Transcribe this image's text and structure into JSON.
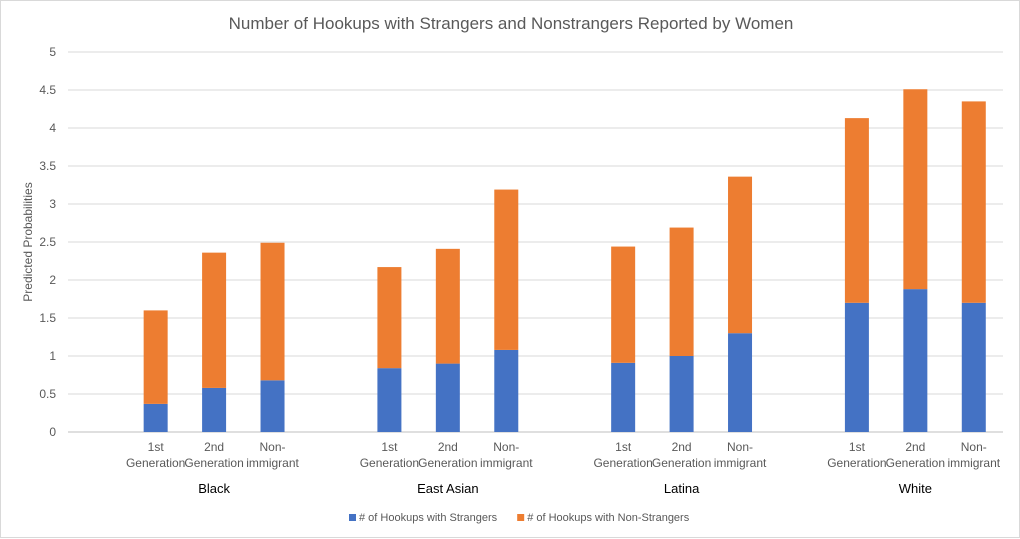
{
  "chart_data": {
    "type": "bar",
    "stacked": true,
    "title": "Number of Hookups with Strangers and Nonstrangers Reported by Women",
    "ylabel": "Predicted Probabilities",
    "xlabel": "",
    "ylim": [
      0,
      5
    ],
    "yticks": [
      "0",
      "0.5",
      "1",
      "1.5",
      "2",
      "2.5",
      "3",
      "3.5",
      "4",
      "4.5",
      "5"
    ],
    "grid": true,
    "legend_position": "bottom",
    "groups": [
      {
        "label": "Black",
        "categories": [
          [
            "1st",
            "Generation"
          ],
          [
            "2nd",
            "Generation"
          ],
          [
            "Non-",
            "immigrant"
          ]
        ],
        "strangers": [
          0.37,
          0.58,
          0.68
        ],
        "non_strangers": [
          1.23,
          1.78,
          1.81
        ]
      },
      {
        "label": "East Asian",
        "categories": [
          [
            "1st",
            "Generation"
          ],
          [
            "2nd",
            "Generation"
          ],
          [
            "Non-",
            "immigrant"
          ]
        ],
        "strangers": [
          0.84,
          0.9,
          1.08
        ],
        "non_strangers": [
          1.33,
          1.51,
          2.11
        ]
      },
      {
        "label": "Latina",
        "categories": [
          [
            "1st",
            "Generation"
          ],
          [
            "2nd",
            "Generation"
          ],
          [
            "Non-",
            "immigrant"
          ]
        ],
        "strangers": [
          0.91,
          1.0,
          1.3
        ],
        "non_strangers": [
          1.53,
          1.69,
          2.06
        ]
      },
      {
        "label": "White",
        "categories": [
          [
            "1st",
            "Generation"
          ],
          [
            "2nd",
            "Generation"
          ],
          [
            "Non-",
            "immigrant"
          ]
        ],
        "strangers": [
          1.7,
          1.88,
          1.7
        ],
        "non_strangers": [
          2.43,
          2.63,
          2.65
        ]
      }
    ],
    "series": [
      {
        "name": "# of Hookups with Strangers",
        "key": "strangers",
        "color": "#4472c4"
      },
      {
        "name": "# of Hookups with Non-Strangers",
        "key": "non_strangers",
        "color": "#ed7d31"
      }
    ]
  }
}
